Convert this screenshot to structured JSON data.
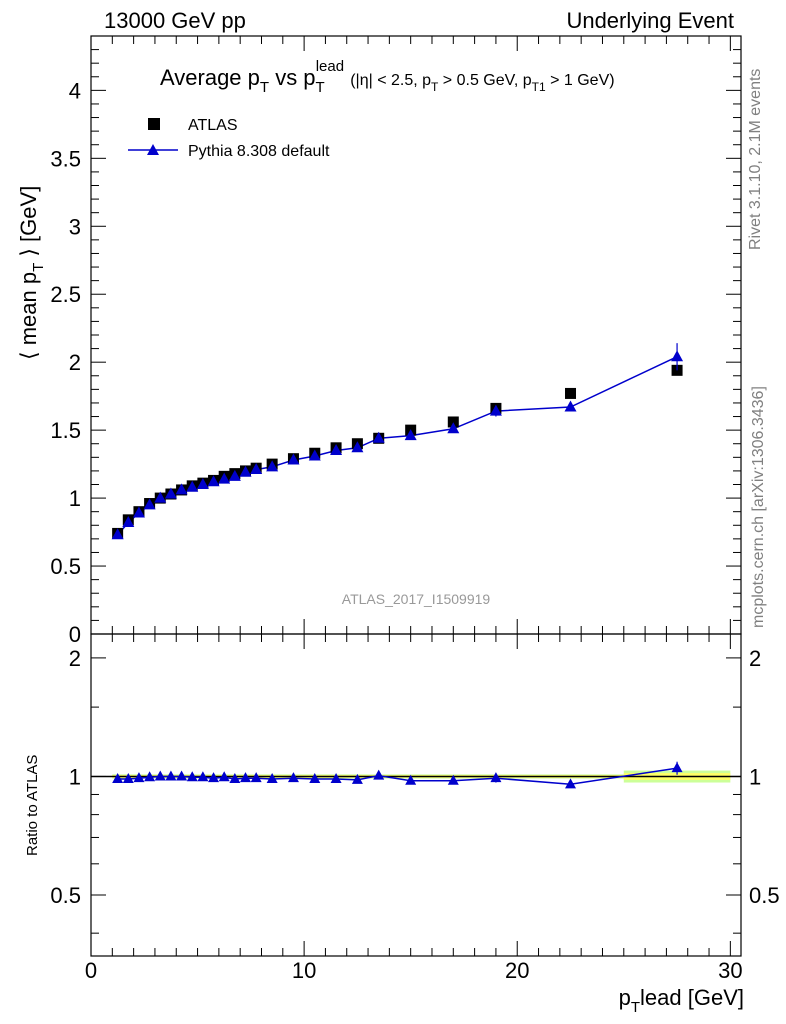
{
  "header": {
    "left": "13000 GeV pp",
    "right": "Underlying Event"
  },
  "title": {
    "main_a": "Average p",
    "main_a_sub": "T",
    "main_b": " vs p",
    "main_b_sub": "T",
    "main_b_sup": "lead",
    "cuts_a": "(|η| < 2.5, p",
    "cuts_a_sub": "T",
    "cuts_b": " > 0.5 GeV, p",
    "cuts_b_sub": "T1",
    "cuts_c": " > 1 GeV)"
  },
  "side_labels": {
    "rivet": "Rivet 3.1.10,  2.1M events",
    "mcplots": "mcplots.cern.ch [arXiv:1306.3436]"
  },
  "analysis_id": "ATLAS_2017_I1509919",
  "colors": {
    "data": "#000000",
    "mc": "#0000cc",
    "band_inner": "#ffff66",
    "band_outer": "#ccff99"
  },
  "chart_data": [
    {
      "type": "scatter",
      "panel": "main",
      "ylabel": "⟨ mean p_T ⟩ [GeV]",
      "ylabel_parts": {
        "a": "⟨ mean p",
        "sub": "T",
        "b": " ⟩ [GeV]"
      },
      "xlim": [
        0,
        30.5
      ],
      "ylim": [
        0,
        4.4
      ],
      "y_ticks": [
        0,
        0.5,
        1,
        1.5,
        2,
        2.5,
        3,
        3.5,
        4
      ],
      "y_tick_labels": [
        "0",
        "0.5",
        "1",
        "1.5",
        "2",
        "2.5",
        "3",
        "3.5",
        "4"
      ],
      "legend_position": "top-left",
      "x": [
        1.25,
        1.75,
        2.25,
        2.75,
        3.25,
        3.75,
        4.25,
        4.75,
        5.25,
        5.75,
        6.25,
        6.75,
        7.25,
        7.75,
        8.5,
        9.5,
        10.5,
        11.5,
        12.5,
        13.5,
        15,
        17,
        19,
        22.5,
        27.5
      ],
      "series": [
        {
          "name": "ATLAS",
          "marker": "square",
          "values": [
            0.74,
            0.84,
            0.9,
            0.96,
            1.0,
            1.03,
            1.06,
            1.09,
            1.11,
            1.13,
            1.16,
            1.18,
            1.2,
            1.22,
            1.25,
            1.29,
            1.33,
            1.37,
            1.4,
            1.44,
            1.5,
            1.56,
            1.66,
            1.77,
            1.94
          ],
          "errors": [
            0.005,
            0.005,
            0.005,
            0.005,
            0.005,
            0.005,
            0.005,
            0.005,
            0.005,
            0.005,
            0.005,
            0.005,
            0.005,
            0.005,
            0.005,
            0.005,
            0.005,
            0.006,
            0.007,
            0.008,
            0.01,
            0.012,
            0.015,
            0.02,
            0.03
          ]
        },
        {
          "name": "Pythia 8.308 default",
          "marker": "triangle",
          "values": [
            0.73,
            0.82,
            0.89,
            0.95,
            1.0,
            1.03,
            1.06,
            1.08,
            1.1,
            1.12,
            1.14,
            1.16,
            1.19,
            1.21,
            1.23,
            1.28,
            1.31,
            1.35,
            1.37,
            1.44,
            1.46,
            1.51,
            1.64,
            1.67,
            2.04
          ],
          "errors": [
            0.004,
            0.004,
            0.004,
            0.004,
            0.004,
            0.004,
            0.004,
            0.004,
            0.005,
            0.005,
            0.005,
            0.005,
            0.006,
            0.006,
            0.007,
            0.008,
            0.009,
            0.01,
            0.012,
            0.015,
            0.018,
            0.02,
            0.04,
            0.03,
            0.1
          ]
        }
      ]
    },
    {
      "type": "scatter",
      "panel": "ratio",
      "ylabel": "Ratio to ATLAS",
      "xlabel_parts": {
        "a": "p",
        "sub": "T",
        "b": "lead [GeV]"
      },
      "xlim": [
        0,
        30.5
      ],
      "ylim": [
        0.35,
        2.3
      ],
      "log_y": true,
      "x_ticks": [
        0,
        10,
        20,
        30
      ],
      "x_tick_labels": [
        "0",
        "10",
        "20",
        "30"
      ],
      "y_ticks": [
        0.5,
        1,
        2
      ],
      "y_tick_labels": [
        "0.5",
        "1",
        "2"
      ],
      "x": [
        1.25,
        1.75,
        2.25,
        2.75,
        3.25,
        3.75,
        4.25,
        4.75,
        5.25,
        5.75,
        6.25,
        6.75,
        7.25,
        7.75,
        8.5,
        9.5,
        10.5,
        11.5,
        12.5,
        13.5,
        15,
        17,
        19,
        22.5,
        27.5
      ],
      "series": [
        {
          "name": "Pythia 8.308 default",
          "values": [
            0.985,
            0.985,
            0.99,
            0.995,
            1.0,
            1.0,
            1.0,
            0.995,
            0.995,
            0.99,
            0.995,
            0.985,
            0.99,
            0.99,
            0.985,
            0.99,
            0.985,
            0.985,
            0.98,
            1.005,
            0.975,
            0.975,
            0.99,
            0.955,
            1.05
          ],
          "errors": [
            0.005,
            0.005,
            0.005,
            0.005,
            0.005,
            0.005,
            0.005,
            0.005,
            0.005,
            0.005,
            0.005,
            0.005,
            0.005,
            0.005,
            0.006,
            0.007,
            0.008,
            0.009,
            0.01,
            0.012,
            0.015,
            0.015,
            0.025,
            0.02,
            0.04
          ]
        }
      ],
      "band": {
        "x": [
          1.0,
          25.0,
          25.0,
          30.0
        ],
        "edges": [
          1.0,
          25.0,
          30.0
        ],
        "inner": [
          0.008,
          0.02
        ],
        "outer": [
          0.012,
          0.035
        ]
      }
    }
  ]
}
